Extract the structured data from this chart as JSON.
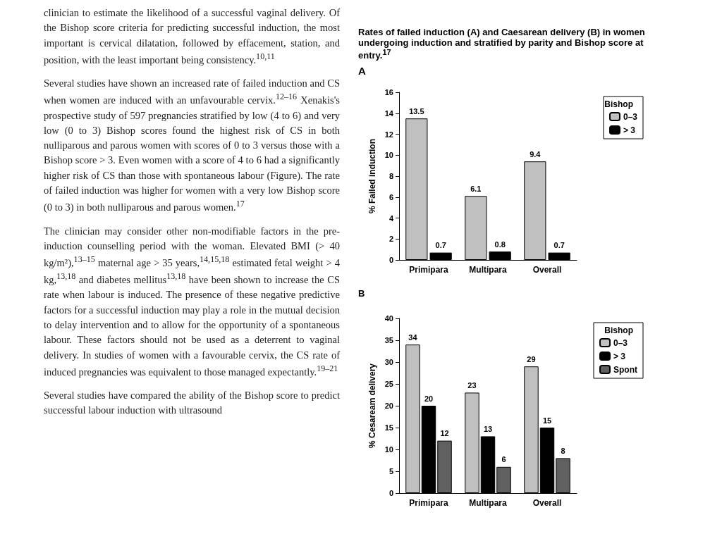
{
  "chart_data": [
    {
      "type": "other",
      "annotations": [
        "clinician to estimate the likelihood of a successful vaginal delivery. Of the Bishop score criteria for predicting successful induction, the most important is cervical dilatation, followed by effacement, station, and position, with the least important being consistency.$^{10,11}$",
        "Several studies have shown an increased rate of failed induction and CS when women are induced with an unfavourable cervix.$^{12–16}$ Xenakis's prospective study of 597 pregnancies stratified by low (4 to 6) and very low (0 to 3) Bishop scores found the highest risk of CS in both nulliparous and parous women with scores of 0 to 3 versus those with a Bishop score > 3. Even women with a score of 4 to 6 had a significantly higher risk of CS than those with spontaneous labour (Figure). The rate of failed induction was higher for women with a very low Bishop score (0 to 3) in both nulliparous and parous women.$^{17}$",
        "The clinician may consider other non-modifiable factors in the pre-induction counselling period with the woman. Elevated BMI (> 40 kg/m²),$^{13–15}$ maternal age > 35 years,$^{14,15,18}$ estimated fetal weight > 4 kg,$^{13,18}$ and diabetes mellitus$^{13,18}$ have been shown to increase the CS rate when labour is induced. The presence of these negative predictive factors for a successful induction may play a role in the mutual decision to delay intervention and to allow for the opportunity of a spontaneous labour. These factors should not be used as a deterrent to vaginal delivery. In studies of women with a favourable cervix, the CS rate of induced pregnancies was equivalent to those managed expectantly.$^{19–21}$",
        "Several studies have compared the ability of the Bishop score to predict successful labour induction with ultrasound"
      ]
    },
    {
      "type": "bar",
      "title": "Rates of failed induction (A) and Caesarean delivery (B) in women undergoing induction and stratified by parity and Bishop score at entry.$^{17}$",
      "subtitle": "A",
      "ylabel": "% Failed induction",
      "categories": [
        "Primipara",
        "Multipara",
        "Overall"
      ],
      "series": [
        {
          "name": "0–3",
          "color": "#c0c0c0",
          "values": [
            13.5,
            6.1,
            9.4
          ]
        },
        {
          "name": "> 3",
          "color": "#000000",
          "values": [
            0.7,
            0.8,
            0.7
          ]
        }
      ],
      "ylim": [
        0,
        16
      ],
      "yticks": [
        0,
        2,
        4,
        6,
        8,
        10,
        12,
        14,
        16
      ],
      "grid": false,
      "legend": "top right",
      "legend_title": "Bishop",
      "data_labels": true
    },
    {
      "type": "bar",
      "title": "B",
      "ylabel": "% Cesaream delivery",
      "categories": [
        "Primipara",
        "Multipara",
        "Overall"
      ],
      "series": [
        {
          "name": "0–3",
          "color": "#c0c0c0",
          "values": [
            34,
            23,
            29
          ]
        },
        {
          "name": "> 3",
          "color": "#000000",
          "values": [
            20,
            13,
            15
          ]
        },
        {
          "name": "Spont",
          "color": "#606060",
          "values": [
            12,
            6,
            8
          ]
        }
      ],
      "ylim": [
        0,
        40
      ],
      "yticks": [
        0,
        5,
        10,
        15,
        20,
        25,
        30,
        35,
        40
      ],
      "grid": false,
      "legend": "top right",
      "legend_title": "Bishop",
      "data_labels": true
    }
  ]
}
